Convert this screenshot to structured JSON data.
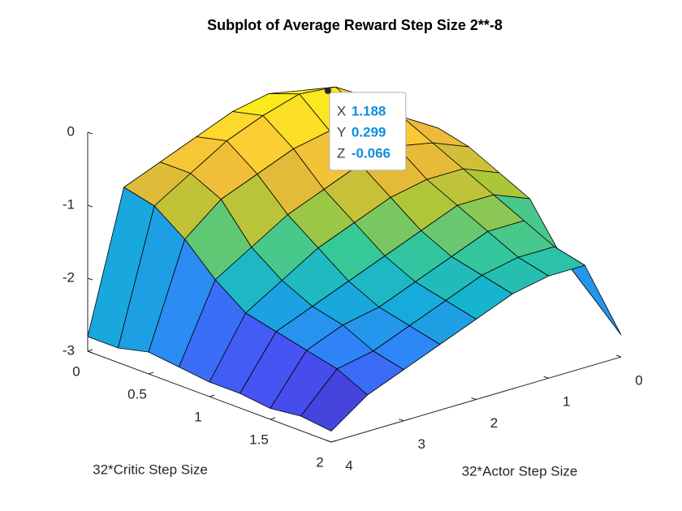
{
  "chart_data": {
    "type": "surface",
    "title": "Subplot of Average Reward Step Size 2**-8",
    "xlabel": "32*Actor Step Size",
    "ylabel": "32*Critic Step Size",
    "x": [
      0,
      0.5,
      1,
      1.5,
      2,
      2.5,
      3,
      3.5,
      4
    ],
    "y": [
      0,
      0.25,
      0.5,
      0.75,
      1,
      1.25,
      1.5,
      1.75,
      2
    ],
    "z": [
      [
        -1.0,
        -0.6,
        -0.3,
        -0.2,
        -0.3,
        -0.5,
        -0.7,
        -0.9,
        -2.8
      ],
      [
        -0.9,
        -0.4,
        -0.1,
        -0.05,
        -0.2,
        -0.4,
        -0.7,
        -1.0,
        -2.8
      ],
      [
        -0.8,
        -0.5,
        -0.3,
        -0.4,
        -0.5,
        -0.7,
        -0.9,
        -1.3,
        -2.7
      ],
      [
        -0.9,
        -0.7,
        -0.6,
        -0.7,
        -0.9,
        -1.1,
        -1.4,
        -1.7,
        -2.75
      ],
      [
        -1.1,
        -0.9,
        -0.9,
        -1.0,
        -1.2,
        -1.4,
        -1.7,
        -2.0,
        -2.8
      ],
      [
        -1.3,
        -1.1,
        -1.1,
        -1.3,
        -1.5,
        -1.7,
        -1.9,
        -2.1,
        -2.8
      ],
      [
        -1.9,
        -1.3,
        -1.3,
        -1.5,
        -1.7,
        -1.9,
        -2.0,
        -2.2,
        -2.85
      ],
      [
        -2.3,
        -1.5,
        -1.5,
        -1.6,
        -1.8,
        -2.0,
        -2.2,
        -2.3,
        -2.8
      ],
      [
        -2.7,
        -1.6,
        -1.6,
        -1.7,
        -1.9,
        -2.1,
        -2.3,
        -2.5,
        -2.85
      ]
    ],
    "xlim": [
      0,
      4
    ],
    "ylim": [
      0,
      2
    ],
    "zlim": [
      -3,
      0
    ],
    "xticks": [
      0,
      1,
      2,
      3,
      4
    ],
    "yticks": [
      0,
      0.5,
      1,
      1.5,
      2
    ],
    "zticks": [
      -3,
      -2,
      -1,
      0
    ],
    "colormap": "parula",
    "datatip": {
      "labels": [
        "X",
        "Y",
        "Z"
      ],
      "x": 1.188,
      "y": 0.299,
      "z": -0.066
    }
  }
}
